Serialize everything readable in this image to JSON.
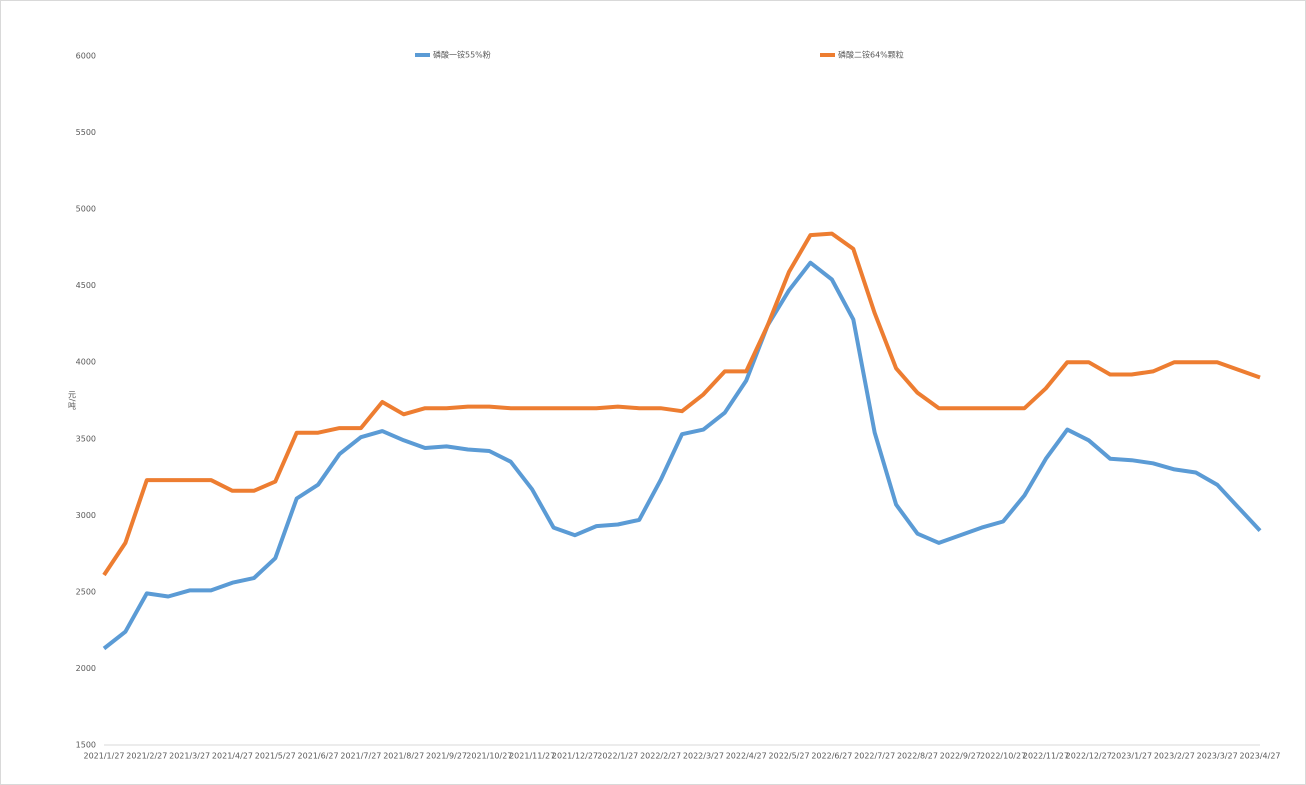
{
  "chart_data": {
    "type": "line",
    "y_label": "元/吨",
    "categories": [
      "2021/1/27",
      null,
      "2021/2/27",
      null,
      "2021/3/27",
      null,
      "2021/4/27",
      null,
      "2021/5/27",
      null,
      "2021/6/27",
      null,
      "2021/7/27",
      null,
      "2021/8/27",
      null,
      "2021/9/27",
      null,
      "2021/10/27",
      null,
      "2021/11/27",
      null,
      "2021/12/27",
      null,
      "2022/1/27",
      null,
      "2022/2/27",
      null,
      "2022/3/27",
      null,
      "2022/4/27",
      null,
      "2022/5/27",
      null,
      "2022/6/27",
      null,
      "2022/7/27",
      null,
      "2022/8/27",
      null,
      "2022/9/27",
      null,
      "2022/10/27",
      null,
      "2022/11/27",
      null,
      "2022/12/27",
      null,
      "2023/1/27",
      null,
      "2023/2/27",
      null,
      "2023/3/27",
      null,
      "2023/4/27"
    ],
    "series": [
      {
        "name": "磷酸一铵55%粉",
        "color": "#5b9bd5",
        "values": [
          2130,
          2240,
          2490,
          2470,
          2510,
          2510,
          2560,
          2590,
          2720,
          3110,
          3200,
          3400,
          3510,
          3550,
          3490,
          3440,
          3450,
          3430,
          3420,
          3350,
          3170,
          2920,
          2870,
          2930,
          2940,
          2970,
          3230,
          3530,
          3560,
          3670,
          3880,
          4240,
          4470,
          4650,
          4540,
          4280,
          3540,
          3070,
          2880,
          2820,
          2870,
          2920,
          2960,
          3130,
          3370,
          3560,
          3490,
          3370,
          3360,
          3340,
          3300,
          3280,
          3200,
          3050,
          2900
        ]
      },
      {
        "name": "磷酸二铵64%颗粒",
        "color": "#ed7d31",
        "values": [
          2610,
          2820,
          3230,
          3230,
          3230,
          3230,
          3160,
          3160,
          3220,
          3540,
          3540,
          3570,
          3570,
          3740,
          3660,
          3700,
          3700,
          3710,
          3710,
          3700,
          3700,
          3700,
          3700,
          3700,
          3710,
          3700,
          3700,
          3680,
          3790,
          3940,
          3940,
          4240,
          4590,
          4830,
          4840,
          4740,
          4320,
          3960,
          3800,
          3700,
          3700,
          3700,
          3700,
          3700,
          3830,
          4000,
          4000,
          3920,
          3920,
          3940,
          4000,
          4000,
          4000,
          3950,
          3900
        ]
      }
    ],
    "ylim": [
      1500,
      6000
    ],
    "yticks": [
      1500,
      2000,
      2500,
      3000,
      3500,
      4000,
      4500,
      5000,
      5500,
      6000
    ],
    "grid": false
  }
}
